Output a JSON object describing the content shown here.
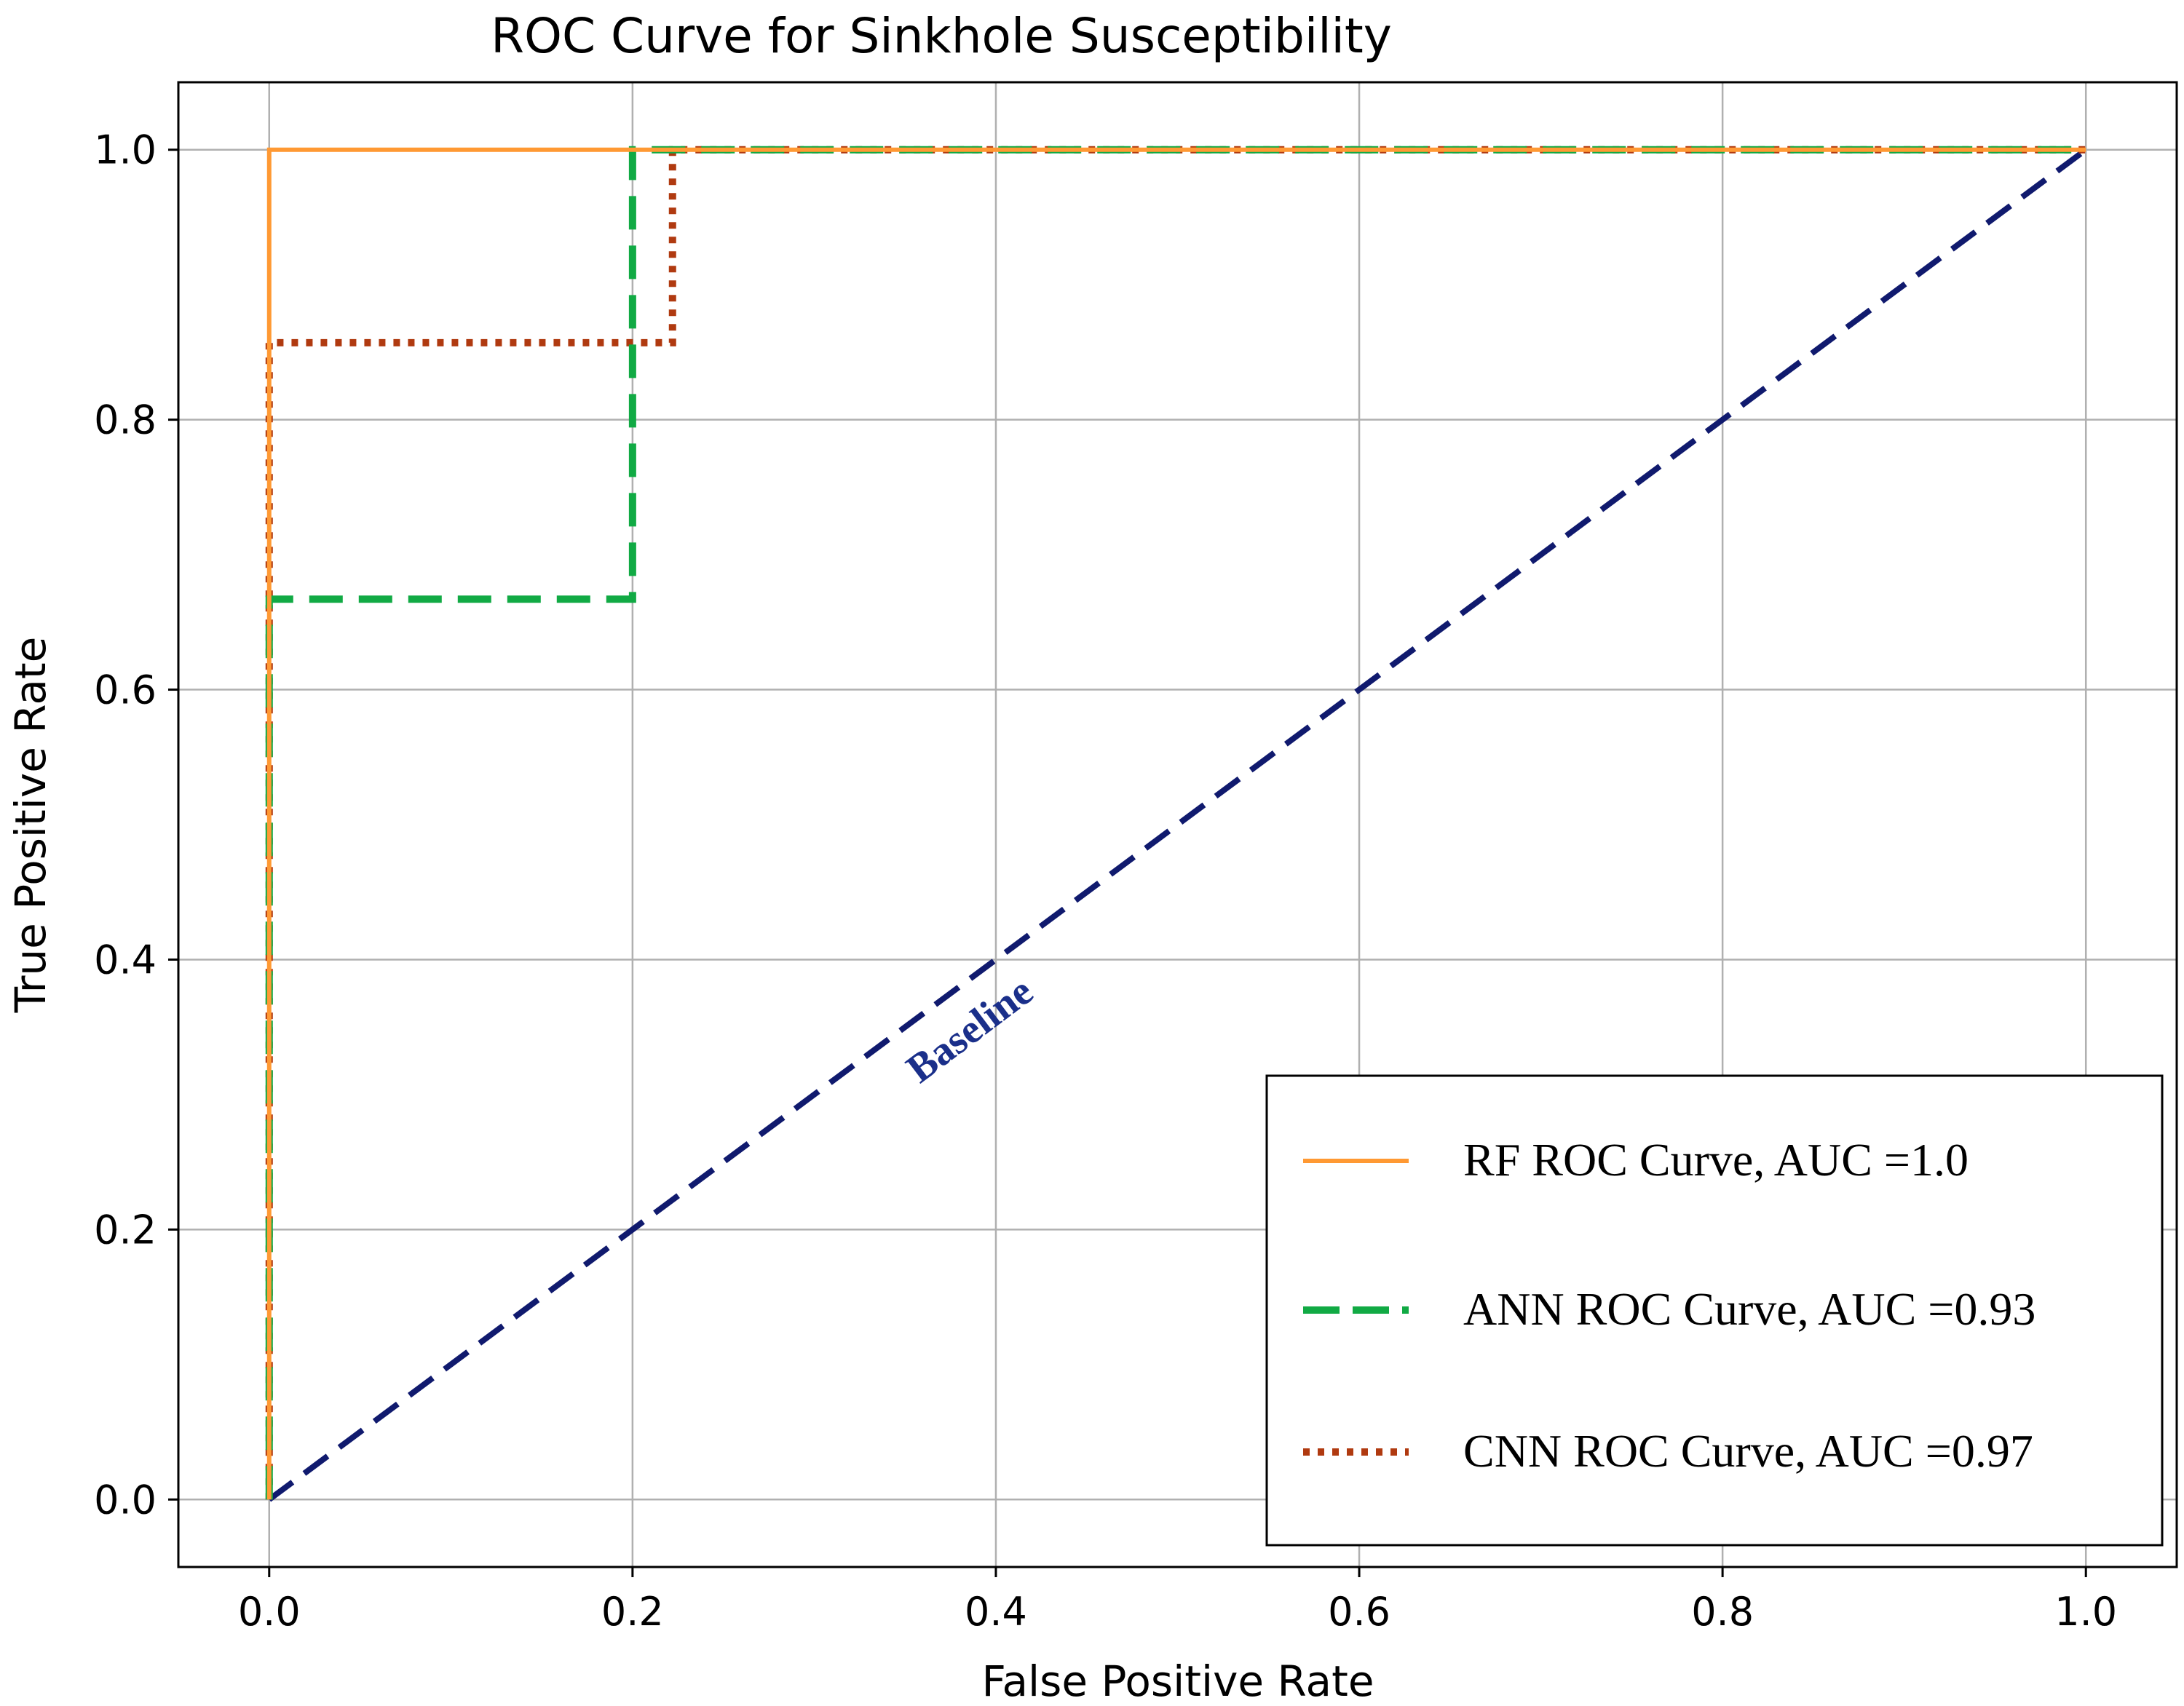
{
  "chart_data": {
    "type": "line",
    "title": "ROC Curve for Sinkhole Susceptibility",
    "xlabel": "False Positive Rate",
    "ylabel": "True Positive Rate",
    "xlim": [
      -0.05,
      1.05
    ],
    "ylim": [
      -0.05,
      1.05
    ],
    "grid": true,
    "x_ticks": [
      0.0,
      0.2,
      0.4,
      0.6,
      0.8,
      1.0
    ],
    "x_tick_labels": [
      "0.0",
      "0.2",
      "0.4",
      "0.6",
      "0.8",
      "1.0"
    ],
    "y_ticks": [
      0.0,
      0.2,
      0.4,
      0.6,
      0.8,
      1.0
    ],
    "y_tick_labels": [
      "0.0",
      "0.2",
      "0.4",
      "0.6",
      "0.8",
      "1.0"
    ],
    "legend_position": "lower-right",
    "series": [
      {
        "name": "RF ROC Curve, AUC =1.0",
        "color": "#ff9933",
        "style": "solid",
        "x": [
          0.0,
          0.0,
          1.0
        ],
        "y": [
          0.0,
          1.0,
          1.0
        ]
      },
      {
        "name": "ANN ROC Curve, AUC =0.93",
        "color": "#11aa44",
        "style": "dashed",
        "x": [
          0.0,
          0.0,
          0.2,
          0.2,
          1.0
        ],
        "y": [
          0.0,
          0.667,
          0.667,
          1.0,
          1.0
        ]
      },
      {
        "name": "CNN ROC Curve, AUC =0.97",
        "color": "#b03a10",
        "style": "dotted",
        "x": [
          0.0,
          0.0,
          0.222,
          0.222,
          1.0
        ],
        "y": [
          0.0,
          0.857,
          0.857,
          1.0,
          1.0
        ]
      },
      {
        "name": "Baseline",
        "color": "#101a6e",
        "style": "dashed",
        "x": [
          0.0,
          1.0
        ],
        "y": [
          0.0,
          1.0
        ]
      }
    ],
    "annotation": {
      "text": "Baseline",
      "x": 0.39,
      "y": 0.34,
      "rotation_deg": -37,
      "color": "#1a2f8a"
    }
  }
}
